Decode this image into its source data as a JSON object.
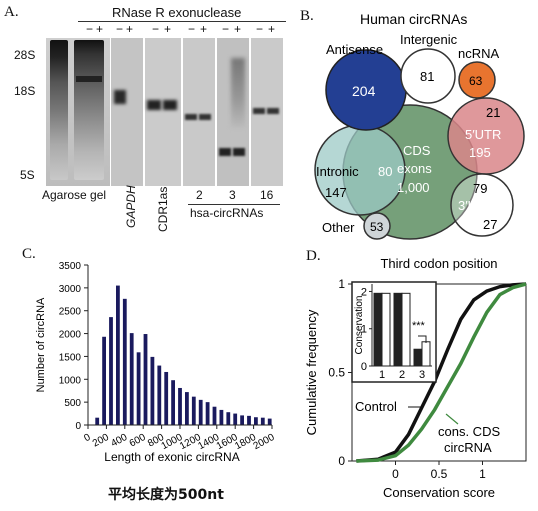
{
  "panelA": {
    "letter": "A.",
    "header": "RNase R exonuclease",
    "minus": "−",
    "plus": "+",
    "markers": [
      "28S",
      "18S",
      "5S"
    ],
    "lane_labels": {
      "agarose": "Agarose gel",
      "gapdh": "GAPDH",
      "cdr1as": "CDR1as",
      "n2": "2",
      "n3": "3",
      "n16": "16"
    },
    "group_label": "hsa-circRNAs"
  },
  "panelB": {
    "letter": "B.",
    "title": "Human circRNAs",
    "antisense": {
      "label": "Antisense",
      "value": "204"
    },
    "intergenic": {
      "label": "Intergenic",
      "value": "81"
    },
    "ncrna": {
      "label": "ncRNA",
      "value": "63"
    },
    "utr5": {
      "label": "5′UTR",
      "value": "195",
      "overlap": "21"
    },
    "cds": {
      "line1": "CDS",
      "line2": "exons",
      "value": "1,000"
    },
    "intronic": {
      "label": "Intronic",
      "value": "147",
      "overlap": "80"
    },
    "utr3": {
      "label": "3′UTR",
      "value": "27",
      "overlap": "79"
    },
    "other": {
      "label": "Other",
      "value": "53"
    },
    "colors": {
      "antisense": "#233f93",
      "ncrna": "#e8742f",
      "cds": "#76a07a",
      "intronic": "#9cc9c5",
      "utr5": "#d9868a",
      "other": "#cfd5d8"
    }
  },
  "panelC": {
    "letter": "C.",
    "ylabel": "Number of circRNA",
    "xlabel": "Length of exonic circRNA",
    "caption": "平均长度为500nt"
  },
  "panelD": {
    "letter": "D.",
    "title": "Third codon position",
    "ylabel": "Cumulative frequency",
    "xlabel": "Conservation score",
    "control_label": "Control",
    "cons_line1": "cons. CDS",
    "cons_line2": "circRNA",
    "inset_ylabel": "Conservation",
    "inset_sig": "***"
  },
  "chart_data": [
    {
      "type": "bar",
      "xlabel": "Length of exonic circRNA",
      "ylabel": "Number of circRNA",
      "ylim": [
        0,
        3500
      ],
      "xlim": [
        0,
        2000
      ],
      "xticks": [
        0,
        200,
        400,
        600,
        800,
        1000,
        1200,
        1400,
        1600,
        1800,
        2000
      ],
      "yticks": [
        0,
        500,
        1000,
        1500,
        2000,
        2500,
        3000,
        3500
      ],
      "bar_color": "#1a1a5e",
      "x": [
        100,
        175,
        250,
        325,
        400,
        475,
        550,
        625,
        700,
        775,
        850,
        925,
        1000,
        1075,
        1150,
        1225,
        1300,
        1375,
        1450,
        1525,
        1600,
        1675,
        1750,
        1825,
        1900,
        1975
      ],
      "values": [
        160,
        1930,
        2360,
        3050,
        2760,
        2010,
        1590,
        1990,
        1490,
        1300,
        1160,
        980,
        810,
        720,
        620,
        550,
        500,
        400,
        330,
        280,
        250,
        210,
        200,
        170,
        160,
        140
      ]
    },
    {
      "type": "line",
      "title": "Third codon position",
      "xlabel": "Conservation score",
      "ylabel": "Cumulative frequency",
      "xticks": [
        "0",
        "0.5",
        "1"
      ],
      "yticks": [
        "0",
        "0.5",
        "1"
      ],
      "xlim": [
        -0.5,
        1.5
      ],
      "ylim": [
        0,
        1
      ],
      "series": [
        {
          "name": "Control",
          "color": "#111111",
          "x": [
            -0.45,
            -0.2,
            0.0,
            0.15,
            0.3,
            0.45,
            0.6,
            0.75,
            0.9,
            1.05,
            1.2,
            1.35,
            1.5
          ],
          "y": [
            0.0,
            0.01,
            0.05,
            0.15,
            0.3,
            0.45,
            0.63,
            0.8,
            0.91,
            0.96,
            0.985,
            0.995,
            1.0
          ]
        },
        {
          "name": "cons. CDS circRNA",
          "color": "#3f8a3f",
          "x": [
            -0.45,
            -0.2,
            0.0,
            0.15,
            0.3,
            0.45,
            0.6,
            0.75,
            0.9,
            1.05,
            1.2,
            1.35,
            1.5
          ],
          "y": [
            0.0,
            0.005,
            0.03,
            0.09,
            0.18,
            0.29,
            0.42,
            0.55,
            0.7,
            0.84,
            0.94,
            0.98,
            1.0
          ]
        }
      ]
    },
    {
      "type": "bar",
      "xlabel": "",
      "ylabel": "Conservation",
      "categories": [
        "1",
        "2",
        "3"
      ],
      "yticks": [
        "0",
        "1",
        "2"
      ],
      "ylim": [
        0,
        2.2
      ],
      "series": [
        {
          "color": "#222222",
          "values": [
            1.95,
            1.95,
            0.45
          ]
        },
        {
          "color": "#ffffff",
          "values": [
            1.95,
            1.95,
            0.65
          ]
        }
      ]
    }
  ]
}
